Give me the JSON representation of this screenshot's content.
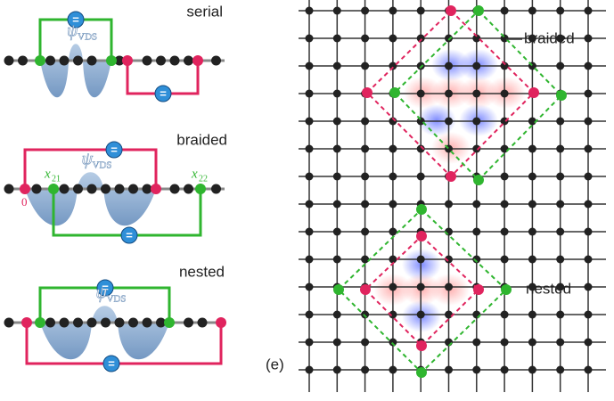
{
  "panels": [
    {
      "label": "serial",
      "psi": "ψ",
      "psi_sub": "VDS",
      "equals": [
        "=",
        "="
      ]
    },
    {
      "label": "braided",
      "psi": "ψ",
      "psi_sub": "VDS",
      "equals": [
        "=",
        "="
      ],
      "origin": "0",
      "x_var": "x",
      "x1_sub": "21",
      "x2_sub": "22"
    },
    {
      "label": "nested",
      "psi": "ψ",
      "psi_sub": "VDS",
      "equals": [
        "=",
        "="
      ]
    }
  ],
  "lattice": {
    "panel_tag": "(e)",
    "labels": [
      "braided",
      "nested"
    ]
  }
}
